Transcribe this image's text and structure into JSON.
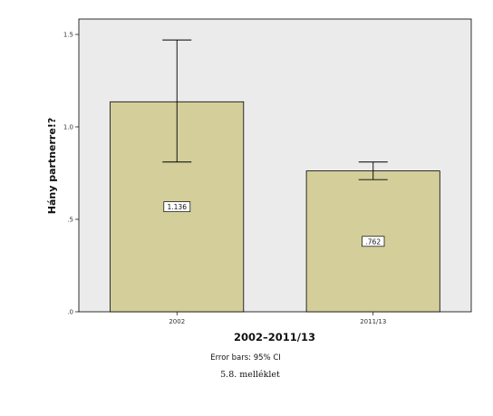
{
  "chart_data": {
    "type": "bar",
    "categories": [
      "2002",
      "2011/13"
    ],
    "values": [
      1.136,
      0.762
    ],
    "data_labels": [
      "1.136",
      ".762"
    ],
    "error_bars": [
      {
        "low": 0.81,
        "high": 1.47
      },
      {
        "low": 0.715,
        "high": 0.81
      }
    ],
    "xlabel": "2002–2011/13",
    "ylabel": "Hány partnerre!?",
    "ylim": [
      0,
      1.5
    ],
    "y_ticks": [
      0,
      0.5,
      1.0,
      1.5
    ],
    "y_tick_labels": [
      ".0",
      ".5",
      "1.0",
      "1.5"
    ],
    "note": "Error bars: 95% CI",
    "grid": false,
    "colors": {
      "plot_background": "#ebebeb",
      "bar_fill": "#d3ce9a",
      "bar_stroke": "#000000"
    }
  },
  "caption": "5.8. melléklet"
}
